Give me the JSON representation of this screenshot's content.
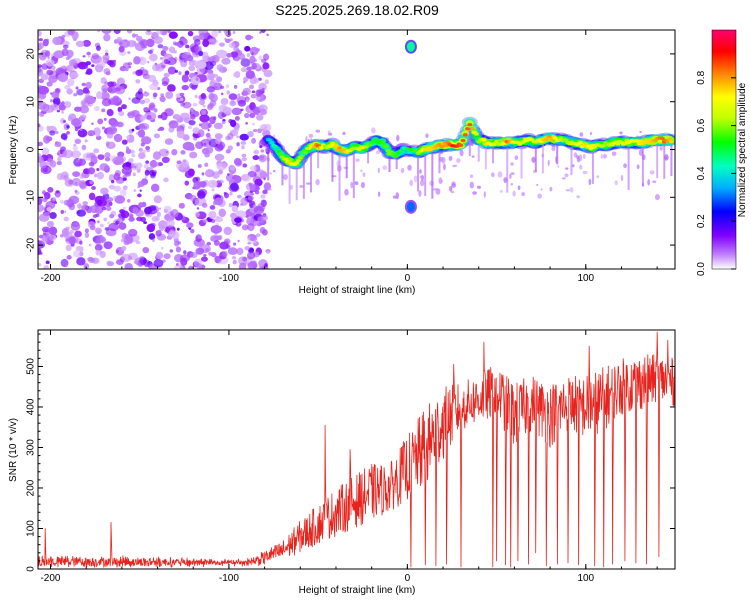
{
  "figure": {
    "title": "S225.2025.269.18.02.R09"
  },
  "chart_data": [
    {
      "type": "heatmap",
      "title": "S225.2025.269.18.02.R09",
      "xlabel": "Height of straight line (km)",
      "ylabel": "Frequency (Hz)",
      "xlim": [
        -207,
        150
      ],
      "ylim": [
        -25,
        25
      ],
      "xticks": [
        -200,
        -100,
        0,
        100
      ],
      "yticks": [
        -20,
        -10,
        0,
        10,
        20
      ],
      "colorbar": {
        "label": "Normalized spectral amplitude",
        "range": [
          0,
          1
        ],
        "ticks": [
          "0.0",
          "0.2",
          "0.4",
          "0.6",
          "0.8"
        ],
        "colors": [
          "#ffffff",
          "#c080ff",
          "#8000ff",
          "#0000ff",
          "#00b0ff",
          "#00ffc0",
          "#00ff00",
          "#c0ff00",
          "#ffff00",
          "#ff8000",
          "#ff0000",
          "#ff0070"
        ]
      },
      "noise_region_x": [
        -207,
        -78
      ],
      "ridge": [
        {
          "x": -78,
          "f": 2.0,
          "a": 0.35
        },
        {
          "x": -74,
          "f": 0.5,
          "a": 0.45
        },
        {
          "x": -70,
          "f": -1.5,
          "a": 0.6
        },
        {
          "x": -66,
          "f": -2.5,
          "a": 0.75
        },
        {
          "x": -62,
          "f": -3.0,
          "a": 0.7
        },
        {
          "x": -58,
          "f": -0.5,
          "a": 0.55
        },
        {
          "x": -54,
          "f": 0.5,
          "a": 0.7
        },
        {
          "x": -50,
          "f": 0.8,
          "a": 0.85
        },
        {
          "x": -46,
          "f": 0.5,
          "a": 0.6
        },
        {
          "x": -42,
          "f": 1.0,
          "a": 0.7
        },
        {
          "x": -38,
          "f": 0.0,
          "a": 0.8
        },
        {
          "x": -34,
          "f": -0.3,
          "a": 0.75
        },
        {
          "x": -30,
          "f": 0.5,
          "a": 0.6
        },
        {
          "x": -26,
          "f": 0.2,
          "a": 0.7
        },
        {
          "x": -22,
          "f": 0.8,
          "a": 0.6
        },
        {
          "x": -18,
          "f": 2.0,
          "a": 0.5
        },
        {
          "x": -14,
          "f": 1.5,
          "a": 0.55
        },
        {
          "x": -10,
          "f": -0.5,
          "a": 0.6
        },
        {
          "x": -6,
          "f": -1.0,
          "a": 0.55
        },
        {
          "x": -2,
          "f": 0.0,
          "a": 0.45
        },
        {
          "x": 6,
          "f": -0.5,
          "a": 0.6
        },
        {
          "x": 10,
          "f": 0.0,
          "a": 0.75
        },
        {
          "x": 14,
          "f": 0.5,
          "a": 0.75
        },
        {
          "x": 18,
          "f": 0.8,
          "a": 0.8
        },
        {
          "x": 22,
          "f": 1.0,
          "a": 0.8
        },
        {
          "x": 26,
          "f": 1.0,
          "a": 0.9
        },
        {
          "x": 30,
          "f": 1.0,
          "a": 0.85
        },
        {
          "x": 35,
          "f": 5.5,
          "a": 0.85
        },
        {
          "x": 40,
          "f": 2.0,
          "a": 0.6
        },
        {
          "x": 44,
          "f": 1.5,
          "a": 0.75
        },
        {
          "x": 48,
          "f": 1.3,
          "a": 0.7
        },
        {
          "x": 52,
          "f": 1.5,
          "a": 0.6
        },
        {
          "x": 56,
          "f": 1.5,
          "a": 0.85
        },
        {
          "x": 60,
          "f": 1.5,
          "a": 0.7
        },
        {
          "x": 64,
          "f": 1.5,
          "a": 0.65
        },
        {
          "x": 68,
          "f": 2.0,
          "a": 0.7
        },
        {
          "x": 72,
          "f": 1.5,
          "a": 0.65
        },
        {
          "x": 76,
          "f": 2.0,
          "a": 0.75
        },
        {
          "x": 80,
          "f": 2.5,
          "a": 0.8
        },
        {
          "x": 84,
          "f": 2.0,
          "a": 0.7
        },
        {
          "x": 88,
          "f": 2.0,
          "a": 0.6
        },
        {
          "x": 92,
          "f": 1.5,
          "a": 0.65
        },
        {
          "x": 96,
          "f": 1.2,
          "a": 0.7
        },
        {
          "x": 100,
          "f": 0.8,
          "a": 0.75
        },
        {
          "x": 104,
          "f": 0.5,
          "a": 0.7
        },
        {
          "x": 108,
          "f": 1.0,
          "a": 0.65
        },
        {
          "x": 112,
          "f": 1.0,
          "a": 0.6
        },
        {
          "x": 116,
          "f": 1.5,
          "a": 0.7
        },
        {
          "x": 120,
          "f": 1.5,
          "a": 0.65
        },
        {
          "x": 124,
          "f": 1.5,
          "a": 0.7
        },
        {
          "x": 128,
          "f": 1.5,
          "a": 0.7
        },
        {
          "x": 132,
          "f": 1.5,
          "a": 0.75
        },
        {
          "x": 136,
          "f": 1.8,
          "a": 0.75
        },
        {
          "x": 140,
          "f": 2.0,
          "a": 0.8
        },
        {
          "x": 144,
          "f": 2.0,
          "a": 0.85
        },
        {
          "x": 148,
          "f": 2.0,
          "a": 0.75
        }
      ],
      "isolated_spots": [
        {
          "x": 2,
          "f": 21.5,
          "a": 0.45
        },
        {
          "x": 2,
          "f": -12.0,
          "a": 0.3
        }
      ]
    },
    {
      "type": "line",
      "xlabel": "Height of straight line (km)",
      "ylabel": "SNR (10 * v/v)",
      "xlim": [
        -207,
        150
      ],
      "ylim": [
        0,
        590
      ],
      "xticks": [
        -200,
        -100,
        0,
        100
      ],
      "yticks": [
        0,
        100,
        200,
        300,
        400,
        500
      ],
      "color": "#e8221c",
      "envelope": {
        "x": [
          -207,
          -160,
          -120,
          -90,
          -80,
          -70,
          -60,
          -40,
          -20,
          -10,
          0,
          10,
          20,
          30,
          40,
          50,
          60,
          70,
          80,
          90,
          100,
          110,
          120,
          130,
          140,
          150
        ],
        "base": [
          22,
          22,
          20,
          20,
          30,
          45,
          80,
          140,
          190,
          200,
          250,
          300,
          360,
          400,
          420,
          440,
          380,
          410,
          380,
          410,
          400,
          420,
          450,
          460,
          470,
          460
        ],
        "spread": [
          12,
          12,
          8,
          6,
          15,
          25,
          40,
          60,
          70,
          60,
          80,
          100,
          90,
          60,
          60,
          70,
          80,
          70,
          80,
          70,
          80,
          80,
          70,
          70,
          60,
          60
        ]
      },
      "spikes": [
        {
          "x": -203,
          "y": 100
        },
        {
          "x": -166,
          "y": 115
        },
        {
          "x": -46,
          "y": 355
        },
        {
          "x": -32,
          "y": 295
        },
        {
          "x": 26,
          "y": 505
        },
        {
          "x": 43,
          "y": 560
        },
        {
          "x": 102,
          "y": 550
        },
        {
          "x": 140,
          "y": 585
        },
        {
          "x": 146,
          "y": 565
        }
      ],
      "dips": [
        {
          "x": 2,
          "y": 5
        },
        {
          "x": 10,
          "y": 10
        },
        {
          "x": 16,
          "y": 8
        },
        {
          "x": 22,
          "y": 12
        },
        {
          "x": 30,
          "y": 5
        },
        {
          "x": 48,
          "y": 5
        },
        {
          "x": 50,
          "y": 20
        },
        {
          "x": 55,
          "y": 10
        },
        {
          "x": 58,
          "y": 5
        },
        {
          "x": 62,
          "y": 20
        },
        {
          "x": 68,
          "y": 12
        },
        {
          "x": 72,
          "y": 40
        },
        {
          "x": 78,
          "y": 8
        },
        {
          "x": 84,
          "y": 12
        },
        {
          "x": 90,
          "y": 15
        },
        {
          "x": 96,
          "y": 10
        },
        {
          "x": 105,
          "y": 8
        },
        {
          "x": 110,
          "y": 5
        },
        {
          "x": 115,
          "y": 12
        },
        {
          "x": 122,
          "y": 20
        },
        {
          "x": 128,
          "y": 15
        },
        {
          "x": 134,
          "y": 12
        },
        {
          "x": 141,
          "y": 30
        }
      ]
    }
  ]
}
